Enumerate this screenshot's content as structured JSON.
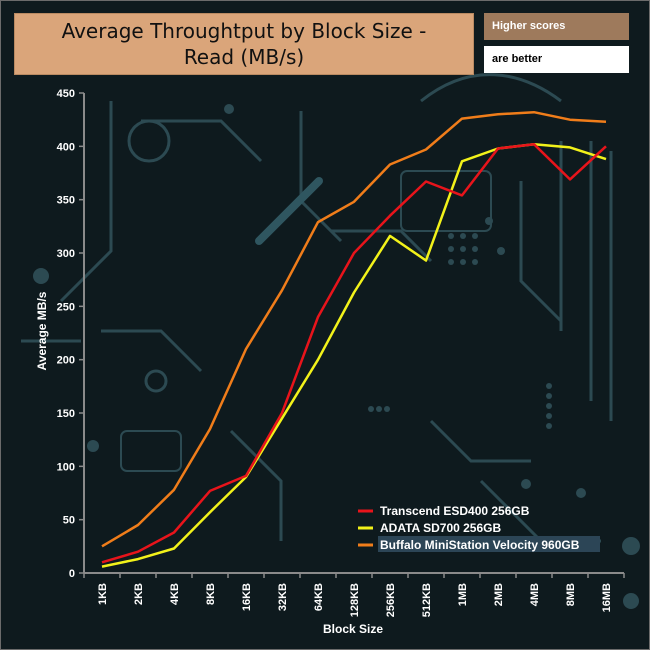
{
  "header": {
    "title": "Average Throughtput by Block Size - Read (MB/s)",
    "badge_top": "Higher scores",
    "badge_bottom": "are better"
  },
  "colors": {
    "background": "#0e1a1e",
    "title_bg": "#daa57a",
    "badge_top_bg": "#9e7a5c",
    "axis": "#8a8a8a"
  },
  "chart_data": {
    "type": "line",
    "title": "Average Throughtput by Block Size - Read (MB/s)",
    "xlabel": "Block Size",
    "ylabel": "Average MB/s",
    "ylim": [
      0,
      450
    ],
    "yticks": [
      0,
      50,
      100,
      150,
      200,
      250,
      300,
      350,
      400,
      450
    ],
    "grid": false,
    "legend_position": "bottom-right",
    "categories": [
      "1KB",
      "2KB",
      "4KB",
      "8KB",
      "16KB",
      "32KB",
      "64KB",
      "128KB",
      "256KB",
      "512KB",
      "1MB",
      "2MB",
      "4MB",
      "8MB",
      "16MB"
    ],
    "series": [
      {
        "name": "Transcend ESD400 256GB",
        "color": "#e8141b",
        "values": [
          10,
          20,
          38,
          77,
          91,
          150,
          240,
          300,
          335,
          367,
          354,
          398,
          402,
          369,
          400
        ]
      },
      {
        "name": "ADATA SD700 256GB",
        "color": "#f2f21a",
        "values": [
          6,
          13,
          23,
          57,
          90,
          145,
          200,
          263,
          316,
          293,
          386,
          398,
          402,
          399,
          388
        ]
      },
      {
        "name": "Buffalo MiniStation Velocity 960GB",
        "color": "#f07d1a",
        "values": [
          25,
          45,
          78,
          135,
          210,
          265,
          329,
          348,
          383,
          397,
          426,
          430,
          432,
          425,
          423
        ]
      }
    ]
  }
}
